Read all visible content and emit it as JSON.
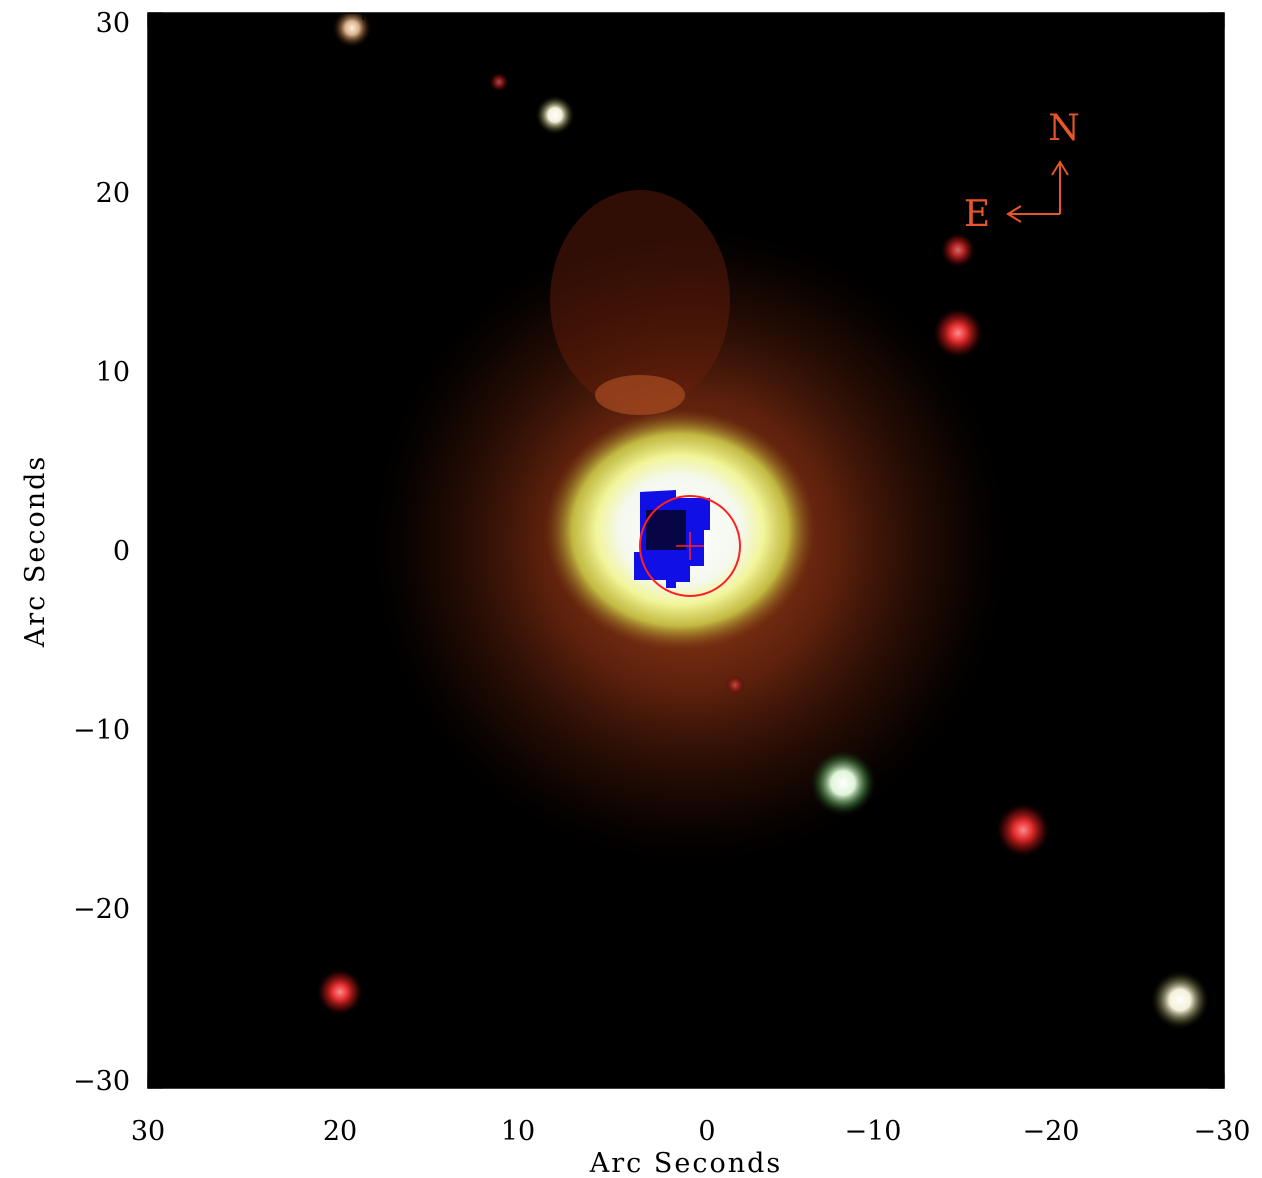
{
  "figure": {
    "x_axis": {
      "label": "Arc Seconds",
      "ticks": [
        "30",
        "20",
        "10",
        "0",
        "−10",
        "−20",
        "−30"
      ]
    },
    "y_axis": {
      "label": "Arc Seconds",
      "ticks": [
        "30",
        "20",
        "10",
        "0",
        "−10",
        "−20",
        "−30"
      ]
    },
    "compass": {
      "north": "N",
      "east": "E"
    }
  },
  "colors": {
    "compass": "#e8552a",
    "marker": "#ff2020",
    "background": "#000000",
    "axes": "#000000"
  }
}
